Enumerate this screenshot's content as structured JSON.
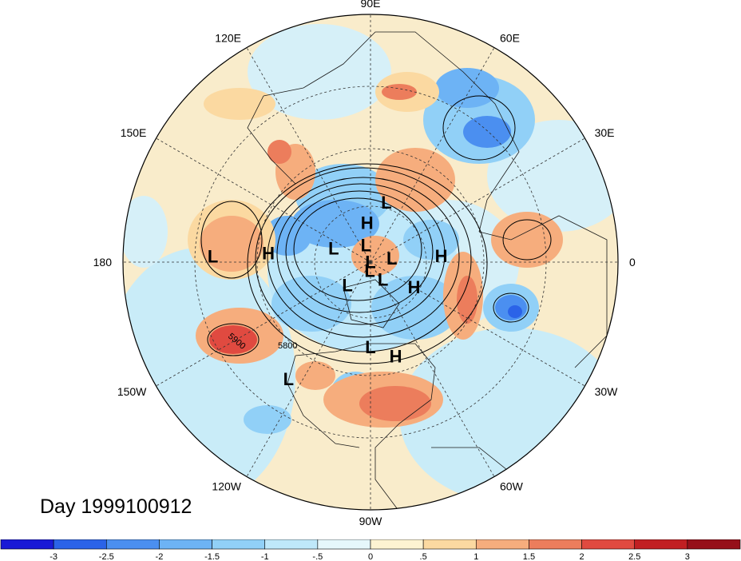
{
  "map": {
    "title": "Day 1999100912",
    "projection": "north-polar-stereographic",
    "lon_labels": [
      {
        "text": "90E",
        "lon_deg": 90
      },
      {
        "text": "60E",
        "lon_deg": 60
      },
      {
        "text": "30E",
        "lon_deg": 30
      },
      {
        "text": "0",
        "lon_deg": 0
      },
      {
        "text": "30W",
        "lon_deg": -30
      },
      {
        "text": "60W",
        "lon_deg": -60
      },
      {
        "text": "90W",
        "lon_deg": -90
      },
      {
        "text": "120W",
        "lon_deg": -120
      },
      {
        "text": "150W",
        "lon_deg": -150
      },
      {
        "text": "180",
        "lon_deg": 180
      },
      {
        "text": "150E",
        "lon_deg": 150
      },
      {
        "text": "120E",
        "lon_deg": 120
      }
    ],
    "pressure_centers": [
      {
        "type": "L",
        "lon": 75,
        "lat": 62
      },
      {
        "type": "H",
        "lon": 95,
        "lat": 72
      },
      {
        "type": "L",
        "lon": 160,
        "lat": 72
      },
      {
        "type": "L",
        "lon": 105,
        "lat": 82
      },
      {
        "type": "H",
        "lon": 175,
        "lat": 45
      },
      {
        "type": "L",
        "lon": 178,
        "lat": 25
      },
      {
        "type": "L",
        "lon": 10,
        "lat": 80
      },
      {
        "type": "L",
        "lon": 120,
        "lat": 90
      },
      {
        "type": "H",
        "lon": 5,
        "lat": 58
      },
      {
        "type": "H",
        "lon": -30,
        "lat": 67
      },
      {
        "type": "L",
        "lon": -135,
        "lat": 75
      },
      {
        "type": "L",
        "lon": -95,
        "lat": 86
      },
      {
        "type": "L",
        "lon": -55,
        "lat": 80
      },
      {
        "type": "L",
        "lon": -90,
        "lat": 52
      },
      {
        "type": "H",
        "lon": -75,
        "lat": 47
      },
      {
        "type": "L",
        "lon": -125,
        "lat": 30
      }
    ],
    "contour_labels": [
      "5800",
      "5900"
    ],
    "anomaly_field": "shaded standardized height anomaly"
  },
  "colorbar": {
    "labels": [
      "-3",
      "-2.5",
      "-2",
      "-1.5",
      "-1",
      "-.5",
      "0",
      ".5",
      "1",
      "1.5",
      "2",
      "2.5",
      "3"
    ],
    "colors": [
      "#1a1ad6",
      "#2b63e8",
      "#4b8ff0",
      "#6db3f5",
      "#91d0f7",
      "#bfe8fa",
      "#e6f7fb",
      "#fdf3d2",
      "#fbd9a1",
      "#f6ad7d",
      "#ec7d5c",
      "#e04a40",
      "#c11f22",
      "#96101a"
    ]
  }
}
